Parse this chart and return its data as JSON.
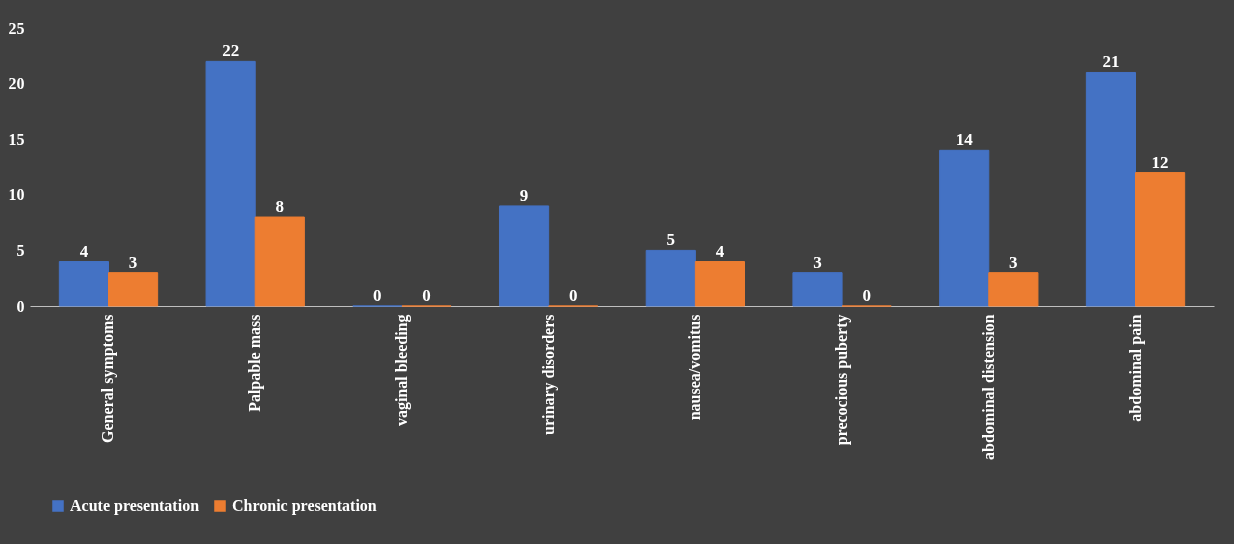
{
  "chart_data": {
    "type": "bar",
    "categories": [
      "General symptoms",
      "Palpable mass",
      "vaginal bleeding",
      "urinary disorders",
      "nausea/vomitus",
      "precocious puberty",
      "abdominal distension",
      "abdominal pain"
    ],
    "series": [
      {
        "name": "Acute presentation",
        "color": "#4472c4",
        "values": [
          4,
          22,
          0,
          9,
          5,
          3,
          14,
          21
        ]
      },
      {
        "name": "Chronic presentation",
        "color": "#ed7d31",
        "values": [
          3,
          8,
          0,
          0,
          4,
          0,
          3,
          12
        ]
      }
    ],
    "ylim": [
      0,
      25
    ],
    "yticks": [
      0,
      5,
      10,
      15,
      20,
      25
    ],
    "grid": false,
    "legend": "bottom",
    "data_labels": true
  }
}
